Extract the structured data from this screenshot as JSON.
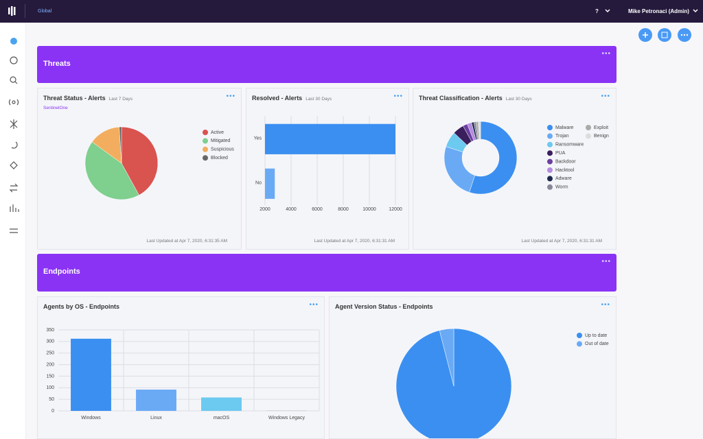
{
  "header": {
    "scope": "Global",
    "help": "?",
    "user": "Mike Petronaci (Admin)"
  },
  "sections": [
    {
      "title": "Threats"
    },
    {
      "title": "Endpoints"
    }
  ],
  "widgets": [
    {
      "title": "Threat Status - Alerts",
      "subtitle": "Last 7 Days",
      "source": "SentinelOne",
      "updated": "Last Updated at Apr 7, 2020, 6:31:35 AM",
      "chart": {
        "type": "pie",
        "categories": [
          "Active",
          "Mitigated",
          "Suspicious",
          "Blocked"
        ],
        "values": [
          42,
          43,
          14,
          1
        ],
        "colors": [
          "#d9534f",
          "#7fcf8f",
          "#f2ad5e",
          "#666666"
        ]
      }
    },
    {
      "title": "Resolved - Alerts",
      "subtitle": "Last 30 Days",
      "updated": "Last Updated at Apr 7, 2020, 6:31:31 AM",
      "chart": {
        "type": "hbar",
        "categories": [
          "Yes",
          "No"
        ],
        "values": [
          12000,
          2750
        ],
        "colors": [
          "#3b8ff0",
          "#6aaaf5"
        ],
        "xlim": [
          2000,
          12000
        ],
        "xticks": [
          2000,
          4000,
          6000,
          8000,
          10000,
          12000
        ],
        "grid": true
      }
    },
    {
      "title": "Threat Classification - Alerts",
      "subtitle": "Last 30 Days",
      "updated": "Last Updated at Apr 7, 2020, 6:31:31 AM",
      "chart": {
        "type": "donut",
        "categories": [
          "Malware",
          "Trojan",
          "Ransomware",
          "PUA",
          "Backdoor",
          "Hacktool",
          "Adware",
          "Worm",
          "Exploit",
          "Benign"
        ],
        "values": [
          55,
          25,
          7,
          5,
          2,
          2,
          1,
          1,
          1,
          1
        ],
        "colors": [
          "#3b8ff0",
          "#6aaaf5",
          "#6cc9f0",
          "#3a1f5c",
          "#6a3fa0",
          "#b48be0",
          "#1c2a4a",
          "#888899",
          "#aaaaaa",
          "#dddddd"
        ]
      }
    },
    {
      "title": "Agents by OS - Endpoints",
      "chart": {
        "type": "bar",
        "categories": [
          "Windows",
          "Linux",
          "macOS",
          "Windows Legacy"
        ],
        "values": [
          312,
          92,
          58,
          2
        ],
        "colors": [
          "#3b8ff0",
          "#6aaaf5",
          "#6cc9f0",
          "#cccccc"
        ],
        "ylim": [
          0,
          350
        ],
        "yticks": [
          0,
          50,
          100,
          150,
          200,
          250,
          300,
          350
        ],
        "grid": true
      }
    },
    {
      "title": "Agent Version Status - Endpoints",
      "chart": {
        "type": "pie",
        "categories": [
          "Up to date",
          "Out of date"
        ],
        "values": [
          96,
          4
        ],
        "colors": [
          "#3b8ff0",
          "#6aaaf5"
        ]
      }
    }
  ]
}
